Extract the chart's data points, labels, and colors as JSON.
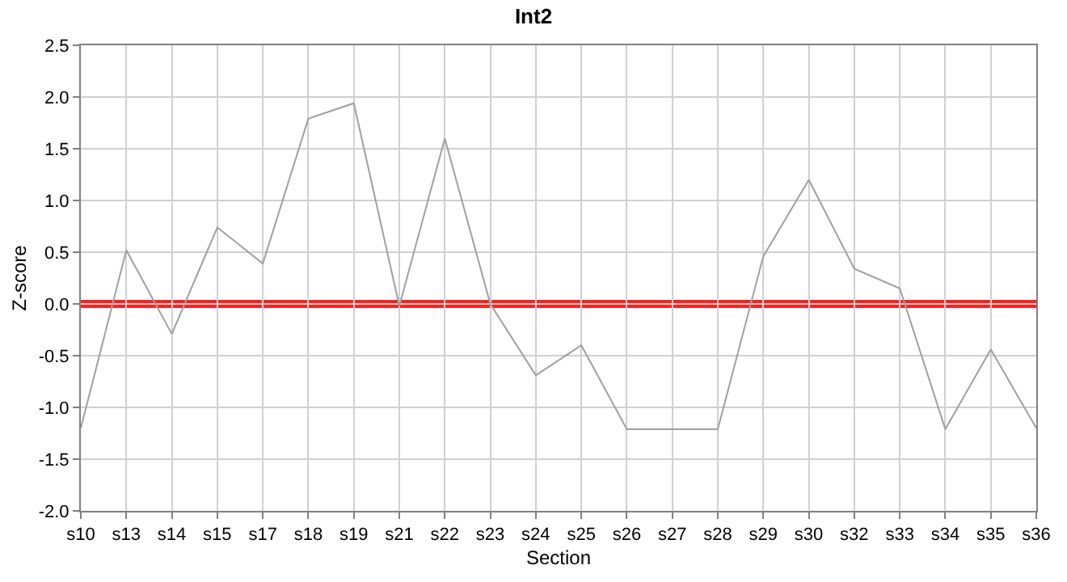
{
  "chart_data": {
    "type": "line",
    "title": "Int2",
    "xlabel": "Section",
    "ylabel": "Z-score",
    "categories": [
      "s10",
      "s13",
      "s14",
      "s15",
      "s17",
      "s18",
      "s19",
      "s21",
      "s22",
      "s23",
      "s24",
      "s25",
      "s26",
      "s27",
      "s28",
      "s29",
      "s30",
      "s32",
      "s33",
      "s34",
      "s35",
      "s36"
    ],
    "series": [
      {
        "color": "#a0a0a0",
        "values": [
          -1.2,
          0.52,
          -0.29,
          0.74,
          0.39,
          1.79,
          1.94,
          -0.02,
          1.6,
          0.0,
          -0.69,
          -0.4,
          -1.21,
          -1.21,
          -1.21,
          0.46,
          1.2,
          0.34,
          0.15,
          -1.21,
          -0.44,
          -1.2
        ]
      }
    ],
    "ylim": [
      -2.0,
      2.5
    ],
    "yticks": [
      {
        "value": -2,
        "label": "-2.0"
      },
      {
        "value": -1.5,
        "label": "-1.5"
      },
      {
        "value": -1,
        "label": "-1.0"
      },
      {
        "value": -0.5,
        "label": "-0.5"
      },
      {
        "value": 0,
        "label": "0.0"
      },
      {
        "value": 0.5,
        "label": "0.5"
      },
      {
        "value": 1,
        "label": "1.0"
      },
      {
        "value": 1.5,
        "label": "1.5"
      },
      {
        "value": 2,
        "label": "2.0"
      },
      {
        "value": 2.5,
        "label": "2.5"
      }
    ],
    "ref_lines": [
      {
        "axis": "y",
        "value": 0,
        "color": "#ff2020"
      }
    ],
    "grid": true,
    "legend": false,
    "marker": "none",
    "line_style": "solid"
  }
}
